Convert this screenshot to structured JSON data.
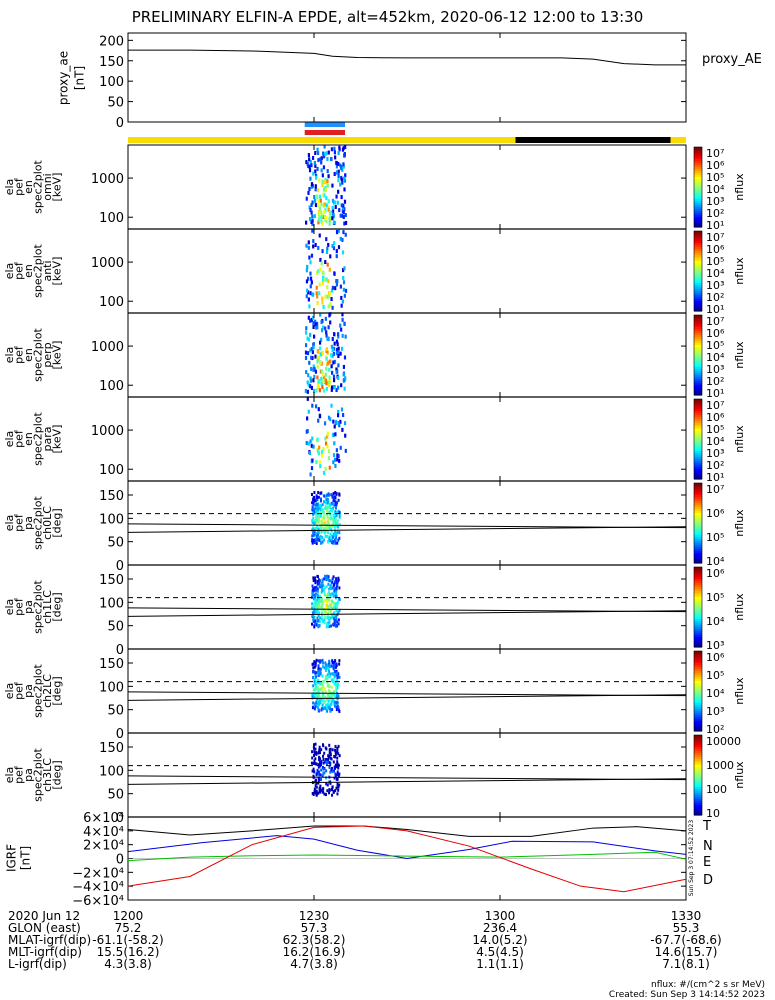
{
  "title": "PRELIMINARY ELFIN-A EPDE, alt=452km, 2020-06-12 12:00 to 13:30",
  "colors": {
    "status_yellow": "#f8dc00",
    "status_black": "#000000",
    "bar_blue": "#1e90ff",
    "bar_red": "#e02020",
    "T": "#000000",
    "N": "#0000e0",
    "E": "#00c000",
    "D": "#e00000"
  },
  "chart_data": [
    {
      "type": "line",
      "panel": "proxy_ae",
      "ylabel": "proxy_ae [nT]",
      "legend": "proxy_AE",
      "ylim": [
        0,
        200
      ],
      "yticks": [
        "200",
        "150",
        "100",
        "50",
        "0"
      ],
      "series": [
        {
          "name": "proxy_AE",
          "x": [
            0,
            10,
            20,
            30,
            33,
            37,
            45,
            60,
            70,
            75,
            80,
            85,
            90
          ],
          "y": [
            176,
            176,
            174,
            168,
            161,
            158,
            157,
            157,
            157,
            154,
            143,
            140,
            140
          ]
        }
      ]
    },
    {
      "type": "heatmap",
      "panel": "omni",
      "ylabel": [
        "ela",
        "pef",
        "en",
        "spec2plot",
        "omni",
        "[keV]"
      ],
      "yscale": "log",
      "yticks": [
        "1000",
        "100"
      ],
      "zlabel": "nflux",
      "ztick_labels": [
        "10⁷",
        "10⁶",
        "10⁵",
        "10⁴",
        "10³",
        "10²",
        "10¹"
      ]
    },
    {
      "type": "heatmap",
      "panel": "anti",
      "ylabel": [
        "ela",
        "pef",
        "en",
        "spec2plot",
        "anti",
        "[keV]"
      ],
      "yscale": "log",
      "yticks": [
        "1000",
        "100"
      ],
      "zlabel": "nflux",
      "ztick_labels": [
        "10⁷",
        "10⁶",
        "10⁵",
        "10⁴",
        "10³",
        "10²",
        "10¹"
      ]
    },
    {
      "type": "heatmap",
      "panel": "perp",
      "ylabel": [
        "ela",
        "pef",
        "en",
        "spec2plot",
        "perp",
        "[keV]"
      ],
      "yscale": "log",
      "yticks": [
        "1000",
        "100"
      ],
      "zlabel": "nflux",
      "ztick_labels": [
        "10⁷",
        "10⁶",
        "10⁵",
        "10⁴",
        "10³",
        "10²",
        "10¹"
      ]
    },
    {
      "type": "heatmap",
      "panel": "para",
      "ylabel": [
        "ela",
        "pef",
        "en",
        "spec2plot",
        "para",
        "[keV]"
      ],
      "yscale": "log",
      "yticks": [
        "1000",
        "100"
      ],
      "zlabel": "nflux",
      "ztick_labels": [
        "10⁷",
        "10⁶",
        "10⁵",
        "10⁴",
        "10³",
        "10²",
        "10¹"
      ]
    },
    {
      "type": "heatmap",
      "panel": "ch0LC",
      "ylabel": [
        "ela",
        "pef",
        "pa",
        "spec2plot",
        "ch0LC",
        "[deg]"
      ],
      "ylim": [
        0,
        180
      ],
      "yticks": [
        "150",
        "100",
        "50",
        "0"
      ],
      "zlabel": "nflux",
      "ztick_labels": [
        "10⁷",
        "10⁶",
        "10⁵",
        "10⁴"
      ]
    },
    {
      "type": "heatmap",
      "panel": "ch1LC",
      "ylabel": [
        "ela",
        "pef",
        "pa",
        "spec2plot",
        "ch1LC",
        "[deg]"
      ],
      "ylim": [
        0,
        180
      ],
      "yticks": [
        "150",
        "100",
        "50",
        "0"
      ],
      "zlabel": "nflux",
      "ztick_labels": [
        "10⁶",
        "10⁵",
        "10⁴",
        "10³"
      ]
    },
    {
      "type": "heatmap",
      "panel": "ch2LC",
      "ylabel": [
        "ela",
        "pef",
        "pa",
        "spec2plot",
        "ch2LC",
        "[deg]"
      ],
      "ylim": [
        0,
        180
      ],
      "yticks": [
        "150",
        "100",
        "50",
        "0"
      ],
      "zlabel": "nflux",
      "ztick_labels": [
        "10⁶",
        "10⁵",
        "10⁴",
        "10³",
        "10²"
      ]
    },
    {
      "type": "heatmap",
      "panel": "ch3LC",
      "ylabel": [
        "ela",
        "pef",
        "pa",
        "spec2plot",
        "ch3LC",
        "[deg]"
      ],
      "ylim": [
        0,
        180
      ],
      "yticks": [
        "150",
        "100",
        "50",
        "0"
      ],
      "zlabel": "nflux",
      "ztick_labels": [
        "10000",
        "1000",
        "100",
        "10"
      ]
    },
    {
      "type": "line",
      "panel": "igrf",
      "ylabel": "IGRF [nT]",
      "ylim": [
        -60000,
        60000
      ],
      "yticks": [
        "6×10⁴",
        "4×10⁴",
        "2×10⁴",
        "0",
        "−2×10⁴",
        "−4×10⁴",
        "−6×10⁴"
      ],
      "legend": [
        "T",
        "N",
        "E",
        "D"
      ],
      "series": [
        {
          "name": "T",
          "x": [
            0,
            10,
            20,
            30,
            38,
            45,
            55,
            65,
            75,
            82,
            90
          ],
          "y": [
            42000,
            34000,
            40000,
            47000,
            47000,
            42000,
            32000,
            32000,
            44000,
            46000,
            40000
          ]
        },
        {
          "name": "N",
          "x": [
            0,
            12,
            24,
            30,
            37,
            45,
            55,
            62,
            75,
            85,
            90
          ],
          "y": [
            10000,
            23000,
            33000,
            28000,
            12000,
            0,
            13000,
            25000,
            24000,
            11000,
            6000
          ]
        },
        {
          "name": "E",
          "x": [
            0,
            10,
            20,
            30,
            45,
            60,
            75,
            85,
            90
          ],
          "y": [
            -3000,
            2000,
            4000,
            5000,
            3500,
            2000,
            6000,
            9000,
            -1000
          ]
        },
        {
          "name": "D",
          "x": [
            0,
            10,
            20,
            30,
            38,
            45,
            55,
            65,
            73,
            80,
            90
          ],
          "y": [
            -40000,
            -26000,
            20000,
            45000,
            47000,
            40000,
            18000,
            -15000,
            -40000,
            -48000,
            -30000
          ]
        }
      ]
    }
  ],
  "x_axis": {
    "ticks": [
      "1200",
      "1230",
      "1300",
      "1330"
    ],
    "rows": [
      {
        "label": "2020 Jun 12",
        "values": [
          "1200",
          "1230",
          "1300",
          "1330"
        ]
      },
      {
        "label": "GLON (east)",
        "values": [
          "75.2",
          "57.3",
          "236.4",
          "55.3"
        ]
      },
      {
        "label": "MLAT-igrf(dip)",
        "values": [
          "-61.1(-58.2)",
          "62.3(58.2)",
          "14.0(5.2)",
          "-67.7(-68.6)"
        ]
      },
      {
        "label": "MLT-igrf(dip)",
        "values": [
          "15.5(16.2)",
          "16.2(16.9)",
          "4.5(4.5)",
          "14.6(15.7)"
        ]
      },
      {
        "label": "L-igrf(dip)",
        "values": [
          "4.3(3.8)",
          "4.7(3.8)",
          "1.1(1.1)",
          "7.1(8.1)"
        ]
      }
    ]
  },
  "footer": {
    "units": "nflux: #/(cm^2 s sr MeV)",
    "created": "Created: Sun Sep  3 14:14:52 2023"
  },
  "side_stamp": "Sun Sep 3 07:14:52 2023"
}
